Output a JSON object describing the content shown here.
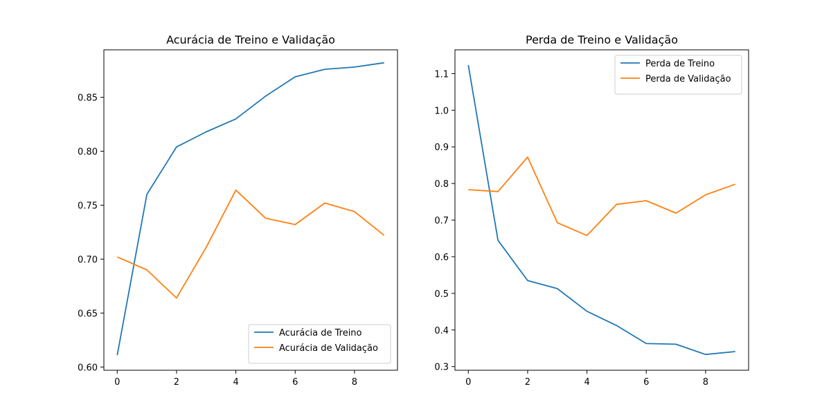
{
  "chart_data": [
    {
      "type": "line",
      "title": "Acurácia de Treino e Validação",
      "xlabel": "",
      "ylabel": "",
      "xlim": [
        -0.45,
        9.45
      ],
      "ylim": [
        0.597,
        0.894
      ],
      "xticks": [
        0,
        2,
        4,
        6,
        8
      ],
      "xtick_labels": [
        "0",
        "2",
        "4",
        "6",
        "8"
      ],
      "yticks": [
        0.6,
        0.65,
        0.7,
        0.75,
        0.8,
        0.85
      ],
      "ytick_labels": [
        "0.60",
        "0.65",
        "0.70",
        "0.75",
        "0.80",
        "0.85"
      ],
      "grid": false,
      "legend_position": "lower-right",
      "x": [
        0,
        1,
        2,
        3,
        4,
        5,
        6,
        7,
        8,
        9
      ],
      "series": [
        {
          "name": "Acurácia de Treino",
          "color": "#1f77b4",
          "values": [
            0.611,
            0.76,
            0.804,
            0.818,
            0.83,
            0.851,
            0.869,
            0.876,
            0.878,
            0.882
          ]
        },
        {
          "name": "Acurácia de Validação",
          "color": "#ff7f0e",
          "values": [
            0.702,
            0.69,
            0.664,
            0.711,
            0.764,
            0.738,
            0.732,
            0.752,
            0.744,
            0.722
          ]
        }
      ]
    },
    {
      "type": "line",
      "title": "Perda de Treino e Validação",
      "xlabel": "",
      "ylabel": "",
      "xlim": [
        -0.45,
        9.45
      ],
      "ylim": [
        0.29,
        1.165
      ],
      "xticks": [
        0,
        2,
        4,
        6,
        8
      ],
      "xtick_labels": [
        "0",
        "2",
        "4",
        "6",
        "8"
      ],
      "yticks": [
        0.3,
        0.4,
        0.5,
        0.6,
        0.7,
        0.8,
        0.9,
        1.0,
        1.1
      ],
      "ytick_labels": [
        "0.3",
        "0.4",
        "0.5",
        "0.6",
        "0.7",
        "0.8",
        "0.9",
        "1.0",
        "1.1"
      ],
      "grid": false,
      "legend_position": "upper-right",
      "x": [
        0,
        1,
        2,
        3,
        4,
        5,
        6,
        7,
        8,
        9
      ],
      "series": [
        {
          "name": "Perda de Treino",
          "color": "#1f77b4",
          "values": [
            1.123,
            0.645,
            0.535,
            0.513,
            0.451,
            0.412,
            0.363,
            0.361,
            0.333,
            0.341
          ]
        },
        {
          "name": "Perda de Validação",
          "color": "#ff7f0e",
          "values": [
            0.783,
            0.778,
            0.872,
            0.693,
            0.658,
            0.743,
            0.753,
            0.719,
            0.769,
            0.798
          ]
        }
      ]
    }
  ]
}
